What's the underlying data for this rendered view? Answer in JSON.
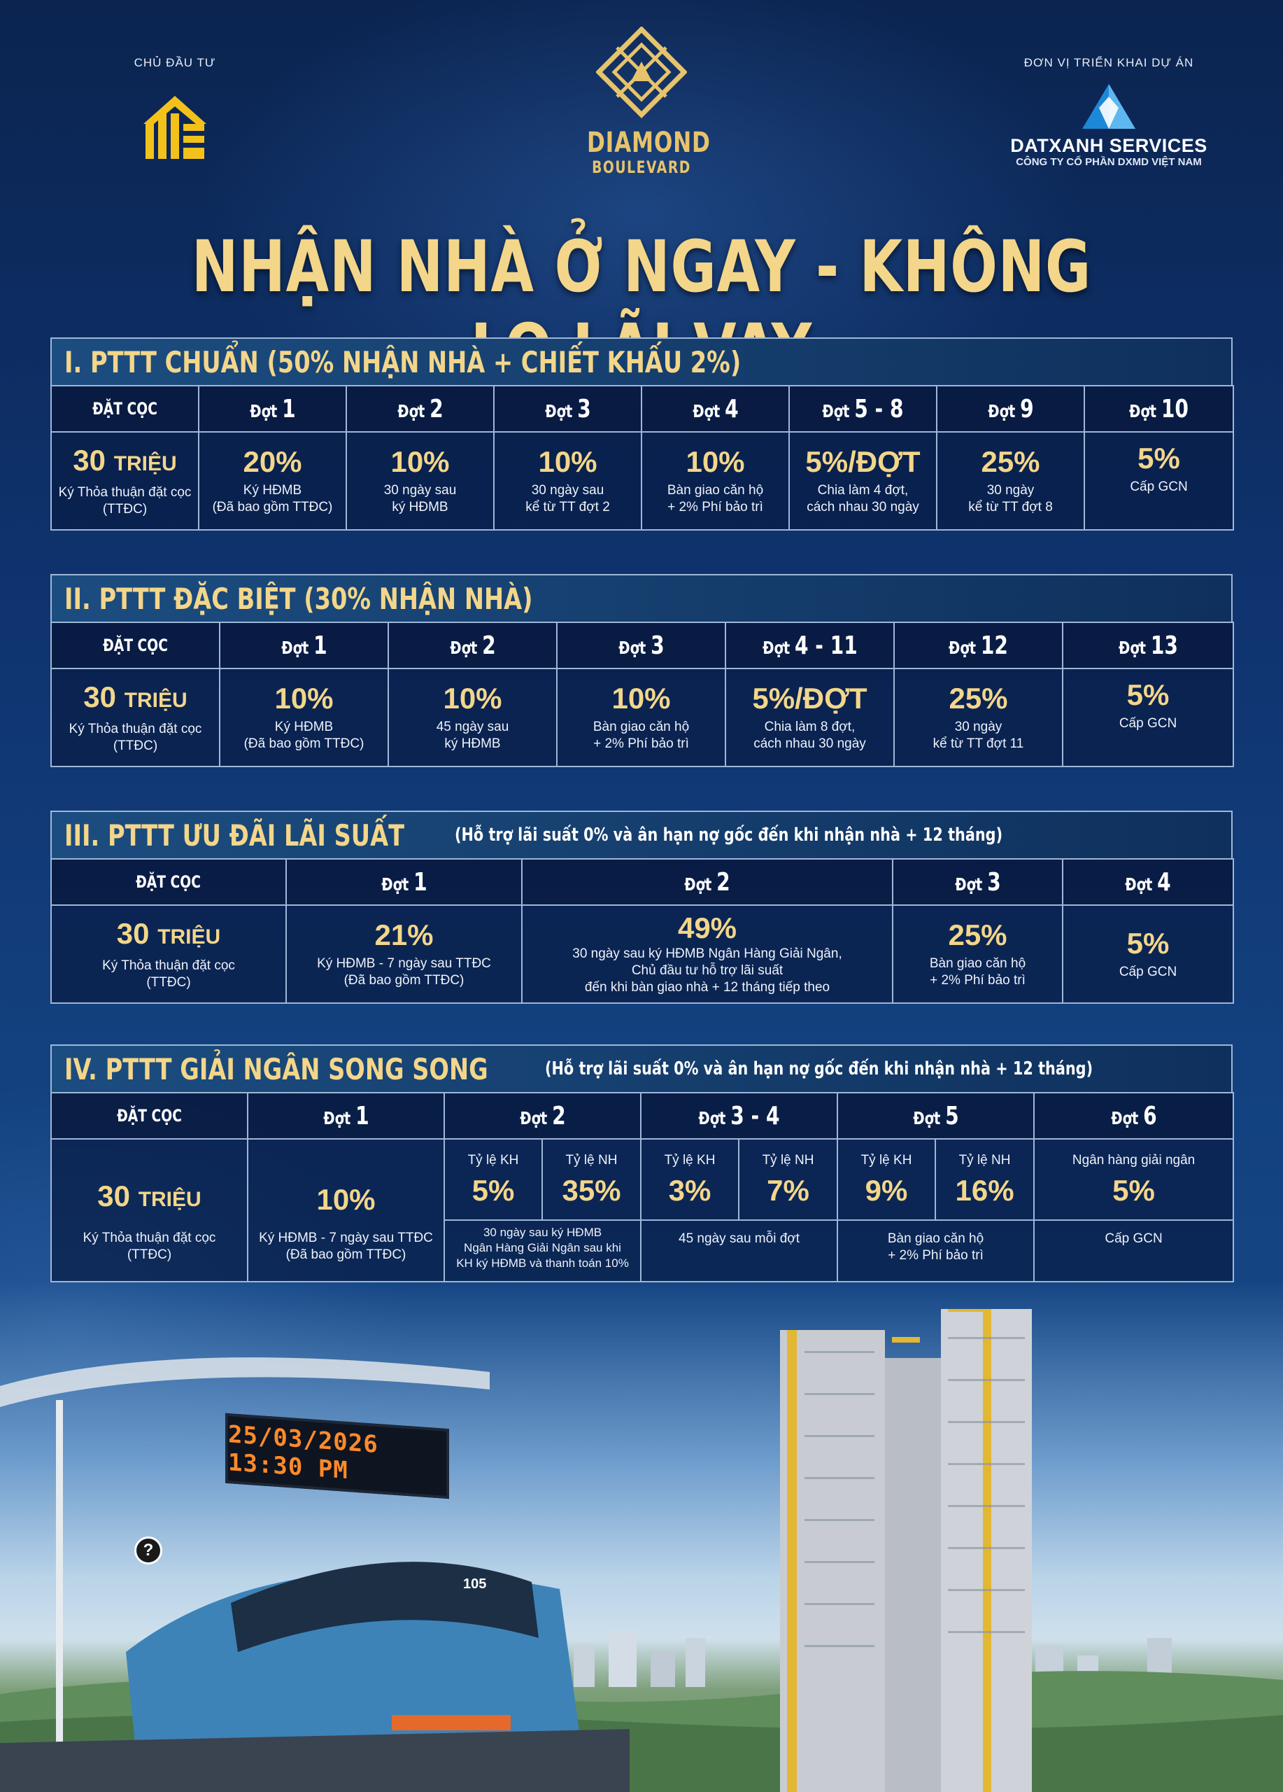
{
  "header": {
    "investor_label": "CHỦ ĐẦU TƯ",
    "brand_line1": "DIAMOND",
    "brand_line2": "BOULEVARD",
    "deployer_label": "ĐƠN VỊ TRIỂN KHAI DỰ ÁN",
    "deployer_name": "DATXANH SERVICES",
    "deployer_sub": "CÔNG TY CỔ PHẦN DXMD VIỆT NAM"
  },
  "headline": "NHẬN NHÀ Ở NGAY - KHÔNG LO LÃI VAY",
  "colors": {
    "gold": "#f3d68a",
    "navy": "#0b2450",
    "border": "#9fb7d8"
  },
  "section1": {
    "title": "I. PTTT CHUẨN (50% NHẬN NHÀ + CHIẾT KHẤU 2%)",
    "columns": [
      {
        "label": "ĐẶT CỌC",
        "value": "30",
        "unit": "TRIỆU",
        "desc": "Ký Thỏa thuận đặt cọc\n(TTĐC)"
      },
      {
        "prefix": "Đợt",
        "num": "1",
        "value": "20%",
        "desc": "Ký HĐMB\n(Đã bao gồm TTĐC)"
      },
      {
        "prefix": "Đợt",
        "num": "2",
        "value": "10%",
        "desc": "30 ngày sau\nký HĐMB"
      },
      {
        "prefix": "Đợt",
        "num": "3",
        "value": "10%",
        "desc": "30 ngày sau\nkể từ TT đợt 2"
      },
      {
        "prefix": "Đợt",
        "num": "4",
        "value": "10%",
        "desc": "Bàn giao căn hộ\n+ 2% Phí bảo trì"
      },
      {
        "prefix": "Đợt",
        "num": "5 - 8",
        "value": "5%/ĐỢT",
        "desc": "Chia làm 4 đợt,\ncách nhau 30 ngày"
      },
      {
        "prefix": "Đợt",
        "num": "9",
        "value": "25%",
        "desc": "30 ngày\nkể từ TT đợt 8"
      },
      {
        "prefix": "Đợt",
        "num": "10",
        "value": "5%",
        "desc": "Cấp GCN"
      }
    ]
  },
  "section2": {
    "title": "II. PTTT ĐẶC BIỆT (30% NHẬN NHÀ)",
    "columns": [
      {
        "label": "ĐẶT CỌC",
        "value": "30",
        "unit": "TRIỆU",
        "desc": "Ký Thỏa thuận đặt cọc\n(TTĐC)"
      },
      {
        "prefix": "Đợt",
        "num": "1",
        "value": "10%",
        "desc": "Ký HĐMB\n(Đã bao gồm TTĐC)"
      },
      {
        "prefix": "Đợt",
        "num": "2",
        "value": "10%",
        "desc": "45 ngày sau\nký HĐMB"
      },
      {
        "prefix": "Đợt",
        "num": "3",
        "value": "10%",
        "desc": "Bàn giao căn hộ\n+ 2% Phí bảo trì"
      },
      {
        "prefix": "Đợt",
        "num": "4 - 11",
        "value": "5%/ĐỢT",
        "desc": "Chia làm 8 đợt,\ncách nhau 30 ngày"
      },
      {
        "prefix": "Đợt",
        "num": "12",
        "value": "25%",
        "desc": "30 ngày\nkể từ TT đợt 11"
      },
      {
        "prefix": "Đợt",
        "num": "13",
        "value": "5%",
        "desc": "Cấp GCN"
      }
    ]
  },
  "section3": {
    "title": "III. PTTT ƯU ĐÃI LÃI SUẤT",
    "note": "(Hỗ trợ lãi suất 0% và ân hạn nợ gốc đến khi nhận nhà + 12 tháng)",
    "columns": [
      {
        "label": "ĐẶT CỌC",
        "value": "30",
        "unit": "TRIỆU",
        "desc": "Ký Thỏa thuận đặt cọc\n(TTĐC)"
      },
      {
        "prefix": "Đợt",
        "num": "1",
        "value": "21%",
        "desc": "Ký HĐMB - 7 ngày sau TTĐC\n(Đã bao gồm TTĐC)"
      },
      {
        "prefix": "Đợt",
        "num": "2",
        "value": "49%",
        "desc": "30 ngày sau ký HĐMB Ngân Hàng Giải Ngân,\nChủ đầu tư hỗ trợ lãi suất\nđến khi bàn giao nhà + 12 tháng tiếp theo"
      },
      {
        "prefix": "Đợt",
        "num": "3",
        "value": "25%",
        "desc": "Bàn giao căn hộ\n+ 2% Phí bảo trì"
      },
      {
        "prefix": "Đợt",
        "num": "4",
        "value": "5%",
        "desc": "Cấp GCN"
      }
    ]
  },
  "section4": {
    "title": "IV. PTTT GIẢI NGÂN SONG SONG",
    "note": "(Hỗ trợ lãi suất 0% và ân hạn nợ gốc đến khi nhận nhà + 12 tháng)",
    "dc": {
      "label": "ĐẶT CỌC",
      "value": "30",
      "unit": "TRIỆU",
      "desc": "Ký Thỏa thuận đặt cọc\n(TTĐC)"
    },
    "d1": {
      "prefix": "Đợt",
      "num": "1",
      "value": "10%",
      "desc": "Ký HĐMB - 7 ngày sau TTĐC\n(Đã bao gồm TTĐC)"
    },
    "d2": {
      "prefix": "Đợt",
      "num": "2",
      "kh_label": "Tỷ lệ KH",
      "kh_value": "5%",
      "nh_label": "Tỷ lệ NH",
      "nh_value": "35%",
      "desc": "30 ngày sau ký HĐMB\nNgân Hàng Giải Ngân sau khi\nKH ký HĐMB và thanh toán 10%"
    },
    "d34": {
      "prefix": "Đợt",
      "num": "3 - 4",
      "kh_label": "Tỷ lệ KH",
      "kh_value": "3%",
      "nh_label": "Tỷ lệ NH",
      "nh_value": "7%",
      "desc": "45 ngày sau mỗi đợt"
    },
    "d5": {
      "prefix": "Đợt",
      "num": "5",
      "kh_label": "Tỷ lệ KH",
      "kh_value": "9%",
      "nh_label": "Tỷ lệ NH",
      "nh_value": "16%",
      "desc": "Bàn giao căn hộ\n+ 2% Phí bảo trì"
    },
    "d6": {
      "prefix": "Đợt",
      "num": "6",
      "sub_label": "Ngân hàng giải ngân",
      "value": "5%",
      "desc": "Cấp GCN"
    }
  },
  "scene": {
    "board_text": "25/03/2026 13:30 PM",
    "train_number": "105",
    "help_icon": "question-mark-icon"
  }
}
